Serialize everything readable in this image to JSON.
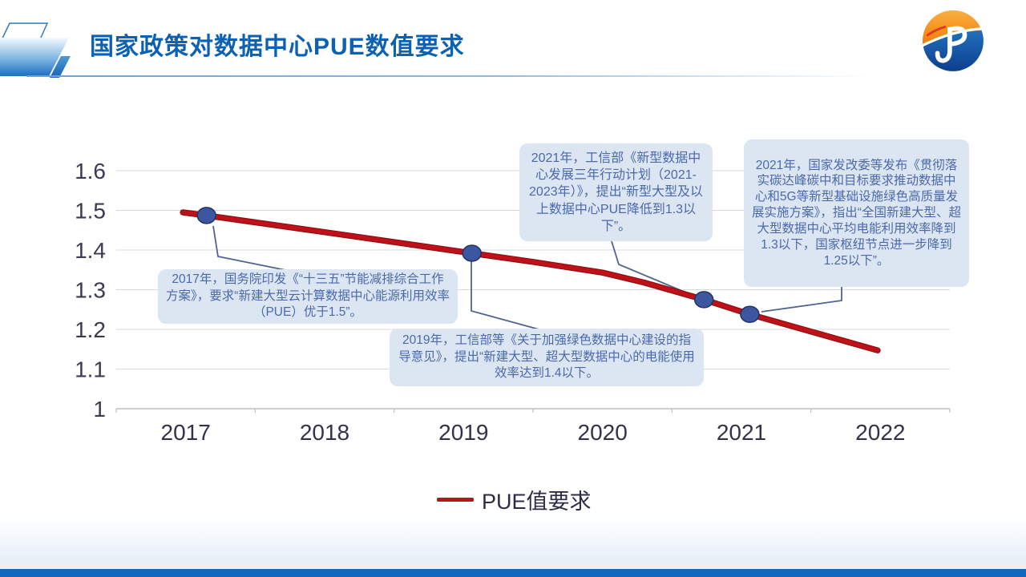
{
  "header": {
    "title": "国家政策对数据中心PUE数值要求"
  },
  "chart_data": {
    "type": "line",
    "title": "",
    "xlabel": "",
    "ylabel": "",
    "categories": [
      "2017",
      "2018",
      "2019",
      "2020",
      "2021",
      "2022"
    ],
    "y_ticks": [
      "1",
      "1.1",
      "1.2",
      "1.3",
      "1.4",
      "1.5",
      "1.6"
    ],
    "ylim": [
      1,
      1.6
    ],
    "xlim": [
      2016.5,
      2022.5
    ],
    "grid": true,
    "legend_position": "bottom",
    "series": [
      {
        "name": "PUE值要求",
        "color": "#c01118",
        "points": [
          [
            2016.98,
            1.495
          ],
          [
            2017.15,
            1.487
          ],
          [
            2018.0,
            1.445
          ],
          [
            2019.06,
            1.392
          ],
          [
            2019.5,
            1.37
          ],
          [
            2020.0,
            1.343
          ],
          [
            2020.3,
            1.318
          ],
          [
            2020.73,
            1.275
          ],
          [
            2021.06,
            1.238
          ],
          [
            2021.98,
            1.147
          ]
        ],
        "markers": [
          [
            2017.15,
            1.487
          ],
          [
            2019.06,
            1.392
          ],
          [
            2020.73,
            1.275
          ],
          [
            2021.06,
            1.238
          ]
        ]
      }
    ]
  },
  "annotations": [
    {
      "year": "2017",
      "text": "2017年，国务院印发《“十三五”节能减排综合工作方案》，要求“新建大型云计算数据中心能源利用效率（PUE）优于1.5”。"
    },
    {
      "year": "2019",
      "text": "2019年，工信部等《关于加强绿色数据中心建设的指导意见》，提出“新建大型、超大型数据中心的电能使用效率达到1.4以下。"
    },
    {
      "year": "2021",
      "text": "2021年，工信部《新型数据中心发展三年行动计划（2021-2023年）》，提出“新型大型及以上数据中心PUE降低到1.3以下”。"
    },
    {
      "year": "2021",
      "text": "2021年，国家发改委等发布《贯彻落实碳达峰碳中和目标要求推动数据中心和5G等新型基础设施绿色高质量发展实施方案》，指出“全国新建大型、超大型数据中心平均电能利用效率降到1.3以下，国家枢纽节点进一步降到1.25以下”。"
    }
  ],
  "legend": {
    "label": "PUE值要求"
  },
  "colors": {
    "title_blue": "#0d61b3",
    "line_red": "#c01118",
    "marker_blue": "#3c56a0",
    "callout_bg": "#dce6f3",
    "callout_text": "#4a69ad",
    "bottom_bar_blue": "#1268bd"
  }
}
